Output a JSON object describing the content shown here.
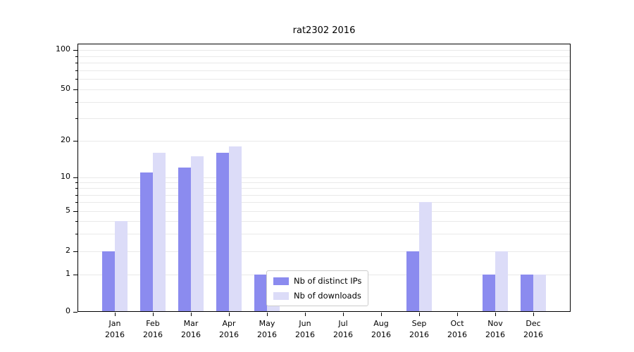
{
  "chart_data": {
    "type": "bar",
    "title": "rat2302 2016",
    "categories": [
      "Jan 2016",
      "Feb 2016",
      "Mar 2016",
      "Apr 2016",
      "May 2016",
      "Jun 2016",
      "Jul 2016",
      "Aug 2016",
      "Sep 2016",
      "Oct 2016",
      "Nov 2016",
      "Dec 2016"
    ],
    "series": [
      {
        "name": "Nb of distinct IPs",
        "color": "#8b8bef",
        "values": [
          2,
          11,
          12,
          16,
          1,
          0,
          0,
          0,
          2,
          0,
          1,
          1
        ]
      },
      {
        "name": "Nb of downloads",
        "color": "#dcdcf8",
        "values": [
          4,
          16,
          15,
          18,
          1,
          0,
          0,
          0,
          6,
          0,
          2,
          1
        ]
      }
    ],
    "xlabel": "",
    "ylabel": "",
    "yscale": "symlog",
    "yticks": [
      0,
      1,
      2,
      5,
      10,
      20,
      50,
      100
    ],
    "ylim": [
      0,
      100
    ],
    "grid": "horizontal",
    "legend_position": "lower center"
  },
  "colors": {
    "grid": "#e9e9e9",
    "axis": "#000000",
    "background": "#ffffff"
  }
}
